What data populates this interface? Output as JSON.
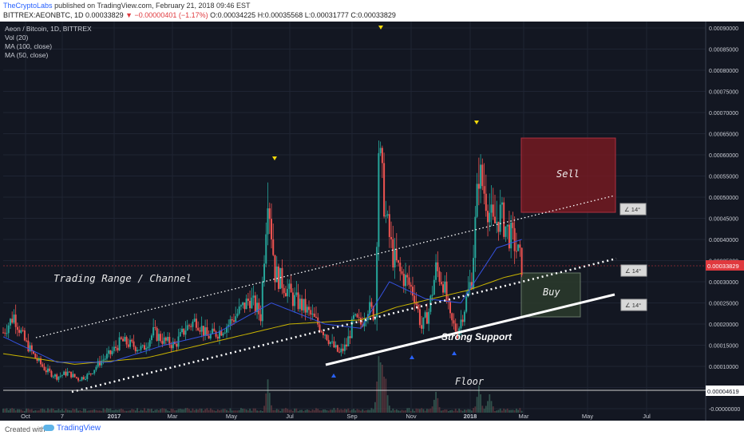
{
  "header": {
    "author": "TheCryptoLabs",
    "published_text": "published on TradingView.com, February 21, 2018 09:46 EST",
    "symbol": "BITTREX:AEONBTC, 1D",
    "last": "0.00033829",
    "change": "▼ −0.00000401 (−1.17%)",
    "open": "O:0.00034225",
    "high": "H:0.00035568",
    "low": "L:0.00031777",
    "close": "C:0.00033829"
  },
  "legend": {
    "title": "Aeon / Bitcoin, 1D, BITTREX",
    "vol": "Vol (20)",
    "ma100": "MA (100, close)",
    "ma50": "MA (50, close)"
  },
  "annotations": {
    "trading_range": "Trading Range / Channel",
    "strong_support": "Strong Support",
    "floor": "Floor",
    "sell": "Sell",
    "buy": "Buy",
    "angle1": "∠ 14°",
    "angle2": "∠ 14°",
    "angle3": "∠ 14°"
  },
  "footer": {
    "created_with": "Created with",
    "brand": "TradingView"
  },
  "colors": {
    "background": "#131722",
    "up": "#26a69a",
    "down": "#ef5350",
    "ma100": "#c9b400",
    "ma50": "#3552e0",
    "sell_zone": "#7a1a22",
    "buy_zone": "#2b3b2b",
    "last_price": "#e0393e"
  },
  "chart_data": {
    "type": "candlestick",
    "x_ticks": [
      "Oct",
      "7",
      "2017",
      "Mar",
      "May",
      "Jul",
      "Sep",
      "Nov",
      "2018",
      "Mar",
      "May",
      "Jul"
    ],
    "y_ticks": [
      "0.00090000",
      "0.00085000",
      "0.00080000",
      "0.00075000",
      "0.00070000",
      "0.00065000",
      "0.00060000",
      "0.00055000",
      "0.00050000",
      "0.00045000",
      "0.00040000",
      "0.00035000",
      "0.00030000",
      "0.00025000",
      "0.00020000",
      "0.00015000",
      "0.00010000",
      "0.00005000",
      "-0.00000000"
    ],
    "ylim": [
      -1e-05,
      0.000915
    ],
    "last_price_label": "0.00033829",
    "floor_price_label": "0.00004619",
    "price_path": [
      [
        0,
        0.00018
      ],
      [
        3,
        0.00022
      ],
      [
        6,
        0.00016
      ],
      [
        9,
        0.00012
      ],
      [
        12,
        9e-05
      ],
      [
        15,
        7.5e-05
      ],
      [
        18,
        8.5e-05
      ],
      [
        21,
        7e-05
      ],
      [
        24,
        8e-05
      ],
      [
        27,
        0.00011
      ],
      [
        30,
        0.00013
      ],
      [
        33,
        0.00016
      ],
      [
        36,
        0.00015
      ],
      [
        39,
        0.00014
      ],
      [
        42,
        0.00018
      ],
      [
        45,
        0.00016
      ],
      [
        48,
        0.00015
      ],
      [
        51,
        0.00019
      ],
      [
        54,
        0.00021
      ],
      [
        57,
        0.00017
      ],
      [
        60,
        0.00018
      ],
      [
        63,
        0.0002
      ],
      [
        66,
        0.00023
      ],
      [
        69,
        0.00026
      ],
      [
        72,
        0.00022
      ],
      [
        74,
        0.00052
      ],
      [
        76,
        0.00032
      ],
      [
        78,
        0.0003
      ],
      [
        81,
        0.00026
      ],
      [
        84,
        0.00024
      ],
      [
        87,
        0.00021
      ],
      [
        90,
        0.00018
      ],
      [
        92,
        0.00015
      ],
      [
        94,
        0.00013
      ],
      [
        96,
        0.00015
      ],
      [
        98,
        0.00021
      ],
      [
        100,
        0.0002
      ],
      [
        102,
        0.00024
      ],
      [
        104,
        0.00022
      ],
      [
        105,
        0.00062
      ],
      [
        107,
        0.00045
      ],
      [
        109,
        0.00036
      ],
      [
        111,
        0.00032
      ],
      [
        113,
        0.0003
      ],
      [
        115,
        0.00027
      ],
      [
        117,
        0.00019
      ],
      [
        119,
        0.00023
      ],
      [
        121,
        0.00033
      ],
      [
        123,
        0.0003
      ],
      [
        125,
        0.00021
      ],
      [
        127,
        0.00018
      ],
      [
        129,
        0.00024
      ],
      [
        131,
        0.00031
      ],
      [
        133,
        0.00056
      ],
      [
        135,
        0.0005
      ],
      [
        137,
        0.00043
      ],
      [
        139,
        0.00046
      ],
      [
        141,
        0.00042
      ],
      [
        143,
        0.00039
      ],
      [
        145,
        0.00034
      ]
    ],
    "price_path_note": "",
    "ma100_path": [
      [
        0,
        0.00013
      ],
      [
        20,
        0.000105
      ],
      [
        40,
        0.00012
      ],
      [
        60,
        0.00016
      ],
      [
        80,
        0.0002
      ],
      [
        100,
        0.00021
      ],
      [
        110,
        0.00024
      ],
      [
        120,
        0.00026
      ],
      [
        130,
        0.00028
      ],
      [
        140,
        0.00031
      ],
      [
        145,
        0.00032
      ]
    ],
    "ma50_path": [
      [
        0,
        0.00017
      ],
      [
        15,
        0.00011
      ],
      [
        30,
        0.00011
      ],
      [
        45,
        0.00015
      ],
      [
        60,
        0.00018
      ],
      [
        75,
        0.00025
      ],
      [
        90,
        0.0002
      ],
      [
        100,
        0.00019
      ],
      [
        108,
        0.0003
      ],
      [
        118,
        0.00026
      ],
      [
        128,
        0.00025
      ],
      [
        138,
        0.00038
      ],
      [
        145,
        0.0004
      ]
    ],
    "volume_spikes": [
      [
        74,
        0.6
      ],
      [
        105,
        1.0
      ],
      [
        106,
        0.7
      ],
      [
        107,
        0.5
      ],
      [
        121,
        0.4
      ],
      [
        133,
        0.5
      ],
      [
        136,
        0.3
      ]
    ]
  }
}
